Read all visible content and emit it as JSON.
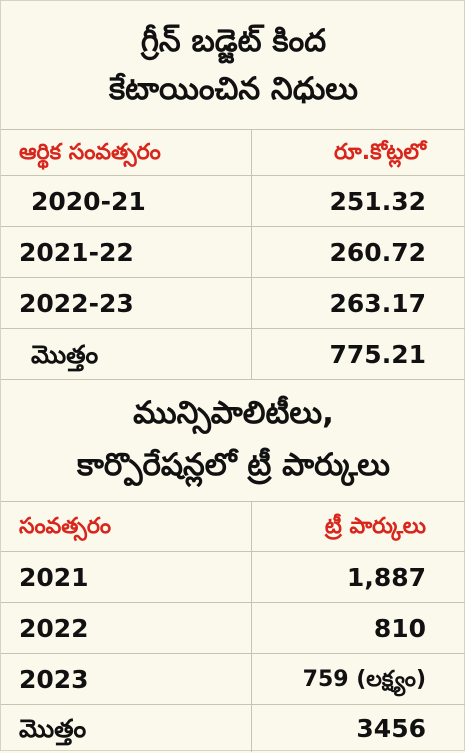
{
  "section1": {
    "title_line1": "గ్రీన్ బడ్జెట్ కింద",
    "title_line2": "కేటాయించిన నిధులు",
    "header_left": "ఆర్థిక సంవత్సరం",
    "header_right": "రూ.కోట్లలో",
    "rows": [
      {
        "label": "2020-21",
        "value": "251.32"
      },
      {
        "label": "2021-22",
        "value": "260.72"
      },
      {
        "label": "2022-23",
        "value": "263.17"
      },
      {
        "label": "మొత్తం",
        "value": "775.21"
      }
    ]
  },
  "section2": {
    "title_line1": "మున్సిపాలిటీలు,",
    "title_line2": "కార్పొరేషన్లలో ట్రీ పార్కులు",
    "header_left": "సంవత్సరం",
    "header_right": "ట్రీ పార్కులు",
    "rows": [
      {
        "label": "2021",
        "value": "1,887"
      },
      {
        "label": "2022",
        "value": "810"
      },
      {
        "label": "2023",
        "value": "759 (లక్ష్యం)"
      },
      {
        "label": "మొత్తం",
        "value": "3456"
      }
    ]
  },
  "colors": {
    "background": "#fbf8ec",
    "header_text": "#d9261c",
    "body_text": "#111111",
    "rule": "#c9c3b1"
  }
}
